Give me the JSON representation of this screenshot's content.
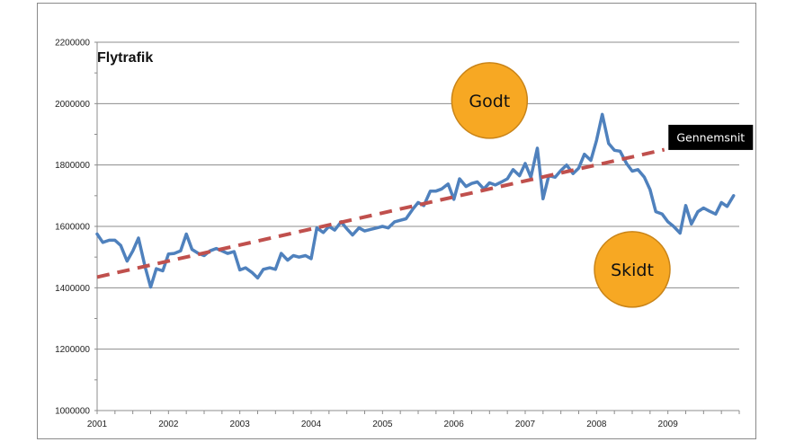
{
  "chart_data": {
    "type": "line",
    "title": "Flytrafik",
    "y_ticks": [
      "1000000",
      "1200000",
      "1400000",
      "1600000",
      "1800000",
      "2000000",
      "2200000"
    ],
    "x_ticks": [
      "2001",
      "2002",
      "2003",
      "2004",
      "2005",
      "2006",
      "2007",
      "2008",
      "2009"
    ],
    "ylim": [
      1000000,
      2200000
    ],
    "xlim": [
      2001,
      2010
    ],
    "grid": "horizontal",
    "series": [
      {
        "color": "#4f81bd",
        "x": [
          2001.0,
          2001.08,
          2001.17,
          2001.25,
          2001.33,
          2001.42,
          2001.5,
          2001.58,
          2001.67,
          2001.75,
          2001.83,
          2001.92,
          2002.0,
          2002.08,
          2002.17,
          2002.25,
          2002.33,
          2002.42,
          2002.5,
          2002.58,
          2002.67,
          2002.75,
          2002.83,
          2002.92,
          2003.0,
          2003.08,
          2003.17,
          2003.25,
          2003.33,
          2003.42,
          2003.5,
          2003.58,
          2003.67,
          2003.75,
          2003.83,
          2003.92,
          2004.0,
          2004.08,
          2004.17,
          2004.25,
          2004.33,
          2004.42,
          2004.5,
          2004.58,
          2004.67,
          2004.75,
          2004.83,
          2004.92,
          2005.0,
          2005.08,
          2005.17,
          2005.25,
          2005.33,
          2005.42,
          2005.5,
          2005.58,
          2005.67,
          2005.75,
          2005.83,
          2005.92,
          2006.0,
          2006.08,
          2006.17,
          2006.25,
          2006.33,
          2006.42,
          2006.5,
          2006.58,
          2006.67,
          2006.75,
          2006.83,
          2006.92,
          2007.0,
          2007.08,
          2007.17,
          2007.25,
          2007.33,
          2007.42,
          2007.5,
          2007.58,
          2007.67,
          2007.75,
          2007.83,
          2007.92,
          2008.0,
          2008.08,
          2008.17,
          2008.25,
          2008.33,
          2008.42,
          2008.5,
          2008.58,
          2008.67,
          2008.75,
          2008.83,
          2008.92,
          2009.0,
          2009.08,
          2009.17,
          2009.25,
          2009.33,
          2009.42,
          2009.5,
          2009.58,
          2009.67,
          2009.75,
          2009.83,
          2009.92
        ],
        "values": [
          1575000,
          1548000,
          1555000,
          1555000,
          1538000,
          1487000,
          1520000,
          1562000,
          1470000,
          1402000,
          1462000,
          1455000,
          1510000,
          1512000,
          1520000,
          1575000,
          1525000,
          1512000,
          1505000,
          1520000,
          1528000,
          1520000,
          1512000,
          1518000,
          1458000,
          1465000,
          1450000,
          1432000,
          1460000,
          1465000,
          1460000,
          1512000,
          1490000,
          1505000,
          1500000,
          1505000,
          1495000,
          1595000,
          1580000,
          1600000,
          1588000,
          1615000,
          1592000,
          1572000,
          1595000,
          1585000,
          1590000,
          1595000,
          1600000,
          1595000,
          1615000,
          1620000,
          1625000,
          1655000,
          1678000,
          1668000,
          1715000,
          1715000,
          1722000,
          1738000,
          1688000,
          1755000,
          1730000,
          1740000,
          1745000,
          1722000,
          1742000,
          1735000,
          1745000,
          1755000,
          1785000,
          1765000,
          1805000,
          1760000,
          1855000,
          1690000,
          1765000,
          1760000,
          1782000,
          1800000,
          1772000,
          1790000,
          1835000,
          1815000,
          1880000,
          1965000,
          1870000,
          1848000,
          1845000,
          1805000,
          1780000,
          1785000,
          1760000,
          1720000,
          1648000,
          1640000,
          1615000,
          1600000,
          1578000,
          1668000,
          1608000,
          1648000,
          1660000,
          1650000,
          1640000,
          1678000,
          1665000,
          1700000
        ]
      },
      {
        "color": "#c0504d",
        "dashed": true,
        "x": [
          2001.0,
          2008.95
        ],
        "values": [
          1435000,
          1850000
        ]
      }
    ],
    "annotations": [
      {
        "text": "Godt",
        "type": "bubble",
        "x": 2006.5,
        "y": 2010000,
        "color": "#f7a823"
      },
      {
        "text": "Skidt",
        "type": "bubble",
        "x": 2008.5,
        "y": 1460000,
        "color": "#f7a823"
      },
      {
        "text": "Gennemsnit",
        "type": "label-box",
        "x": 2009.6,
        "y": 1890000,
        "color": "#000000"
      }
    ]
  }
}
